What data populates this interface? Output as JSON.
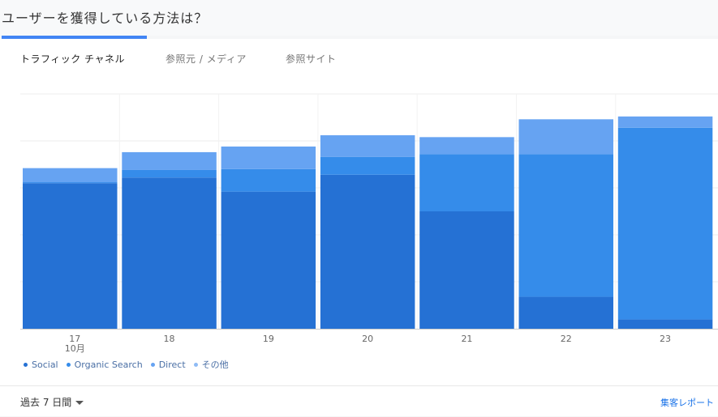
{
  "header": {
    "title": "ユーザーを獲得している方法は？"
  },
  "tabs": [
    {
      "label": "トラフィック チャネル",
      "active": true
    },
    {
      "label": "参照元 / メディア",
      "active": false
    },
    {
      "label": "参照サイト",
      "active": false
    }
  ],
  "chart_data": {
    "type": "bar",
    "stacked": true,
    "categories": [
      "17",
      "18",
      "19",
      "20",
      "21",
      "22",
      "23"
    ],
    "month_label": "10月",
    "series": [
      {
        "name": "Social",
        "color": "#2571d4",
        "values": [
          155,
          161,
          146,
          164,
          125,
          34,
          10
        ]
      },
      {
        "name": "Organic Search",
        "color": "#358cea",
        "values": [
          1,
          8,
          24,
          19,
          61,
          152,
          204
        ]
      },
      {
        "name": "Direct",
        "color": "#66a3f2",
        "values": [
          15,
          19,
          24,
          23,
          18,
          37,
          12
        ]
      },
      {
        "name": "その他",
        "color": "#8fbbf5",
        "values": [
          0,
          0,
          0,
          0,
          0,
          0,
          0
        ]
      }
    ],
    "ylim": [
      0,
      250
    ],
    "grid": true,
    "legend_position": "bottom-left"
  },
  "footer": {
    "date_range": "過去 7 日間",
    "report_link": "集客レポート"
  }
}
